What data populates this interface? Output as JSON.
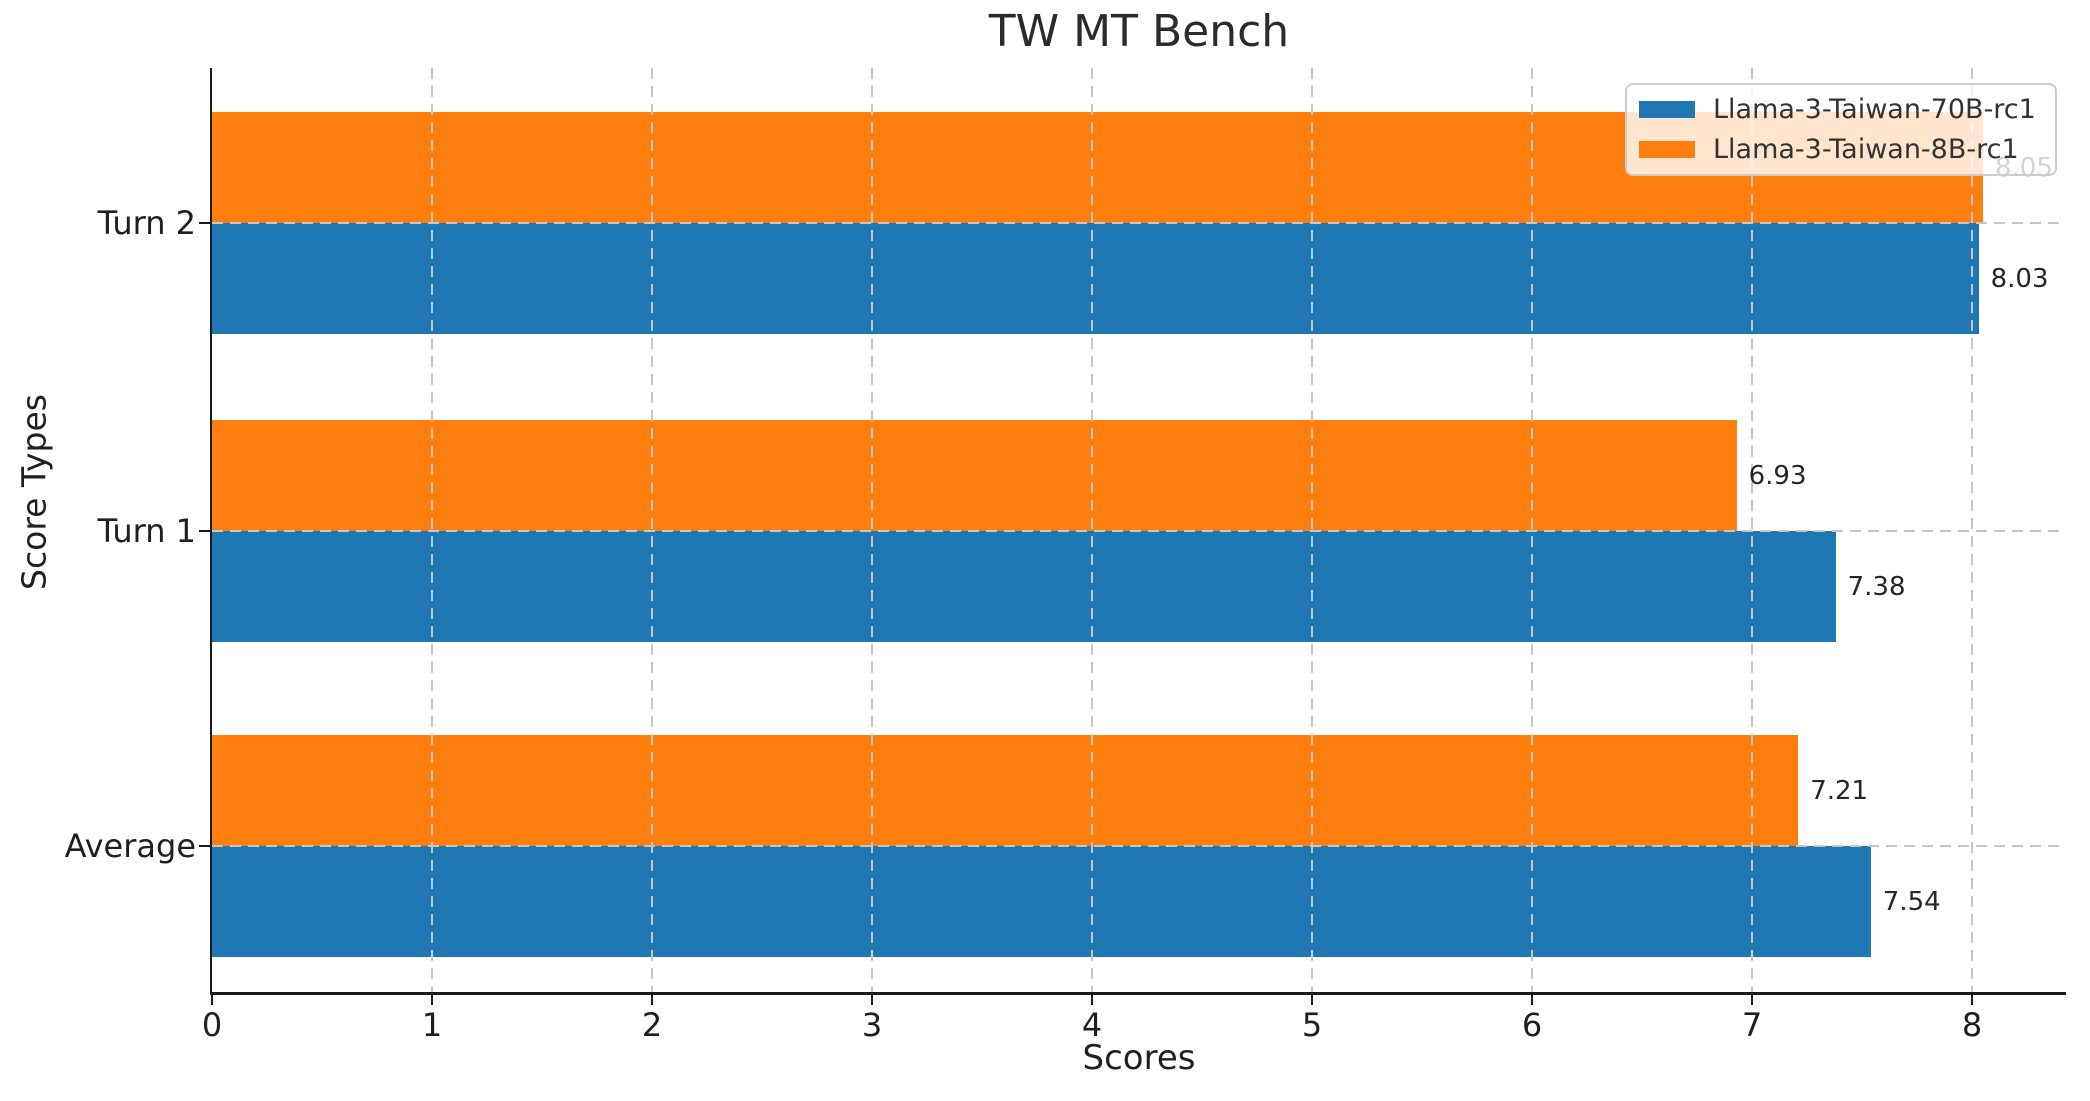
{
  "chart_data": {
    "type": "bar",
    "orientation": "horizontal",
    "title": "TW MT Bench",
    "xlabel": "Scores",
    "ylabel": "Score Types",
    "categories": [
      "Turn 2",
      "Turn 1",
      "Average"
    ],
    "series": [
      {
        "name": "Llama-3-Taiwan-70B-rc1",
        "color": "#1f77b4",
        "values": [
          8.03,
          7.38,
          7.54
        ],
        "labels": [
          "8.03",
          "7.38",
          "7.54"
        ]
      },
      {
        "name": "Llama-3-Taiwan-8B-rc1",
        "color": "#ff7f0e",
        "values": [
          8.05,
          6.93,
          7.21
        ],
        "labels": [
          "8.05",
          "6.93",
          "7.21"
        ]
      }
    ],
    "xticks": [
      "0",
      "1",
      "2",
      "3",
      "4",
      "5",
      "6",
      "7",
      "8"
    ],
    "xtick_values": [
      0,
      1,
      2,
      3,
      4,
      5,
      6,
      7,
      8
    ],
    "xlim": [
      0,
      8.43
    ],
    "grid": true,
    "grid_style": "dashed",
    "legend_position": "upper right",
    "colors": {
      "series_70b": "#1f77b4",
      "series_8b": "#ff7f0e",
      "grid": "#c6c6c6",
      "text": "#1f1f1f",
      "legend_border": "#cccccc"
    }
  }
}
